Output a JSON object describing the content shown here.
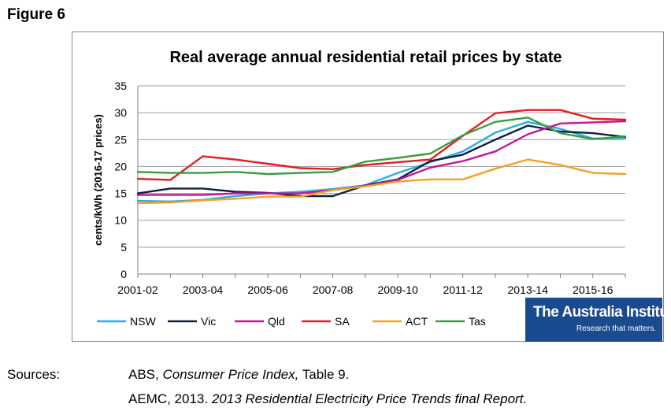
{
  "figure_label": "Figure 6",
  "sources": {
    "label": "Sources:",
    "line1_prefix": "ABS, ",
    "line1_italic": "Consumer Price Index,",
    "line1_suffix": " Table 9.",
    "line2_prefix": "AEMC, 2013.  ",
    "line2_italic": "2013 Residential Electricity Price Trends final Report."
  },
  "logo": {
    "name": "The Australia Institute",
    "tagline": "Research that matters."
  },
  "colors": {
    "NSW": "#29aee3",
    "Vic": "#0d2240",
    "Qld": "#c8139b",
    "SA": "#e31e24",
    "ACT": "#f7a021",
    "Tas": "#3a9d3f",
    "logo_bg": "#1b4b8f"
  },
  "chart_data": {
    "type": "line",
    "title": "Real average annual residential retail prices by state",
    "xlabel": "",
    "ylabel": "cents/kWh (2016-17 prices)",
    "ylim": [
      0,
      35
    ],
    "yticks": [
      0,
      5,
      10,
      15,
      20,
      25,
      30,
      35
    ],
    "grid": true,
    "legend_position": "bottom",
    "x": [
      "2001-02",
      "2002-03",
      "2003-04",
      "2004-05",
      "2005-06",
      "2006-07",
      "2007-08",
      "2008-09",
      "2009-10",
      "2010-11",
      "2011-12",
      "2012-13",
      "2013-14",
      "2014-15",
      "2015-16",
      "2016-17"
    ],
    "x_tick_labels": [
      "2001-02",
      "2003-04",
      "2005-06",
      "2007-08",
      "2009-10",
      "2011-12",
      "2013-14",
      "2015-16"
    ],
    "series": [
      {
        "name": "NSW",
        "values": [
          13.6,
          13.5,
          13.8,
          14.5,
          15.0,
          15.3,
          15.8,
          16.5,
          18.8,
          20.8,
          22.8,
          26.3,
          28.3,
          27.0,
          25.2,
          25.3
        ]
      },
      {
        "name": "Vic",
        "values": [
          15.0,
          15.9,
          15.9,
          15.3,
          15.1,
          14.5,
          14.5,
          16.5,
          17.6,
          21.0,
          22.2,
          25.0,
          27.6,
          26.5,
          26.2,
          25.5
        ]
      },
      {
        "name": "Qld",
        "values": [
          14.7,
          14.7,
          14.7,
          15.0,
          15.0,
          15.0,
          15.6,
          16.4,
          17.5,
          19.8,
          21.0,
          22.8,
          26.0,
          28.0,
          28.2,
          28.4
        ]
      },
      {
        "name": "SA",
        "values": [
          17.7,
          17.5,
          21.9,
          21.3,
          20.5,
          19.7,
          19.5,
          20.3,
          20.8,
          21.3,
          25.7,
          29.9,
          30.5,
          30.5,
          28.9,
          28.7
        ]
      },
      {
        "name": "ACT",
        "values": [
          13.2,
          13.3,
          13.7,
          14.0,
          14.4,
          14.4,
          15.6,
          16.3,
          17.2,
          17.6,
          17.6,
          19.6,
          21.3,
          20.3,
          18.8,
          18.6
        ]
      },
      {
        "name": "Tas",
        "values": [
          19.0,
          18.8,
          18.8,
          19.0,
          18.6,
          18.8,
          19.0,
          20.9,
          21.6,
          22.4,
          25.8,
          28.3,
          29.1,
          26.2,
          25.1,
          25.6
        ]
      }
    ]
  }
}
